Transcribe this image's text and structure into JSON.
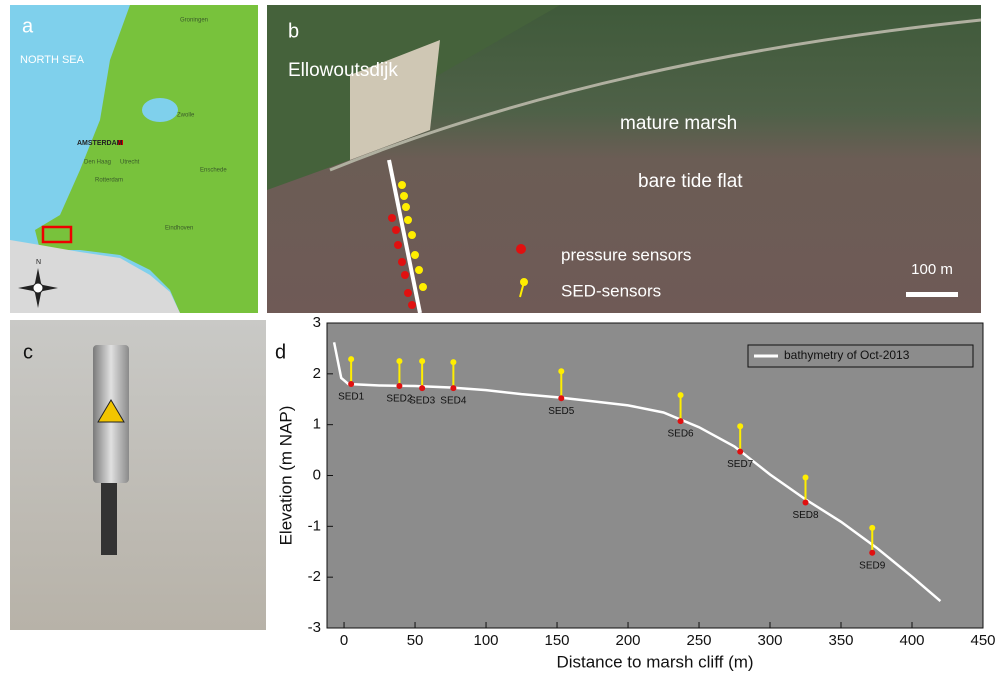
{
  "panels": {
    "a": {
      "label": "a",
      "sea": "NORTH SEA",
      "capital": "AMSTERDAM",
      "north": "N",
      "cities": [
        "Groningen",
        "Zwolle",
        "Den Haag",
        "Utrecht",
        "Rotterdam",
        "Enschede",
        "Eindhoven"
      ]
    },
    "b": {
      "label": "b",
      "site": "Ellowoutsdijk",
      "zones": [
        "mature marsh",
        "bare tide flat"
      ],
      "legend": [
        "pressure sensors",
        "SED-sensors"
      ],
      "scale": "100 m"
    },
    "c": {
      "label": "c"
    },
    "d": {
      "label": "d"
    }
  },
  "chart_data": {
    "type": "line",
    "xlabel": "Distance to marsh cliff (m)",
    "ylabel": "Elevation (m NAP)",
    "xlim": [
      -12,
      450
    ],
    "ylim": [
      -3,
      3
    ],
    "xticks": [
      0,
      50,
      100,
      150,
      200,
      250,
      300,
      350,
      400,
      450
    ],
    "yticks": [
      -3,
      -2,
      -1,
      0,
      1,
      2,
      3
    ],
    "background": "#8c8c8c",
    "series": [
      {
        "name": "bathymetry of Oct-2013",
        "color": "#ffffff",
        "x": [
          -7,
          -2,
          3,
          25,
          50,
          75,
          100,
          125,
          150,
          175,
          200,
          225,
          250,
          275,
          300,
          325,
          350,
          375,
          400,
          420
        ],
        "values": [
          2.62,
          1.92,
          1.8,
          1.77,
          1.76,
          1.73,
          1.68,
          1.6,
          1.54,
          1.46,
          1.38,
          1.24,
          0.95,
          0.57,
          0.02,
          -0.47,
          -0.91,
          -1.42,
          -1.99,
          -2.47
        ]
      }
    ],
    "sensors": {
      "names": [
        "SED1",
        "SED2",
        "SED3",
        "SED4",
        "SED5",
        "SED6",
        "SED7",
        "SED8",
        "SED9"
      ],
      "x": [
        5,
        39,
        55,
        77,
        153,
        237,
        279,
        325,
        372
      ],
      "bed": [
        1.8,
        1.76,
        1.72,
        1.72,
        1.52,
        1.07,
        0.47,
        -0.53,
        -1.52
      ],
      "top": [
        2.29,
        2.25,
        2.25,
        2.23,
        2.05,
        1.58,
        0.97,
        -0.04,
        -1.03
      ],
      "bed_color": "#e01010",
      "top_color": "#ffee00"
    },
    "legend": "upper right"
  }
}
